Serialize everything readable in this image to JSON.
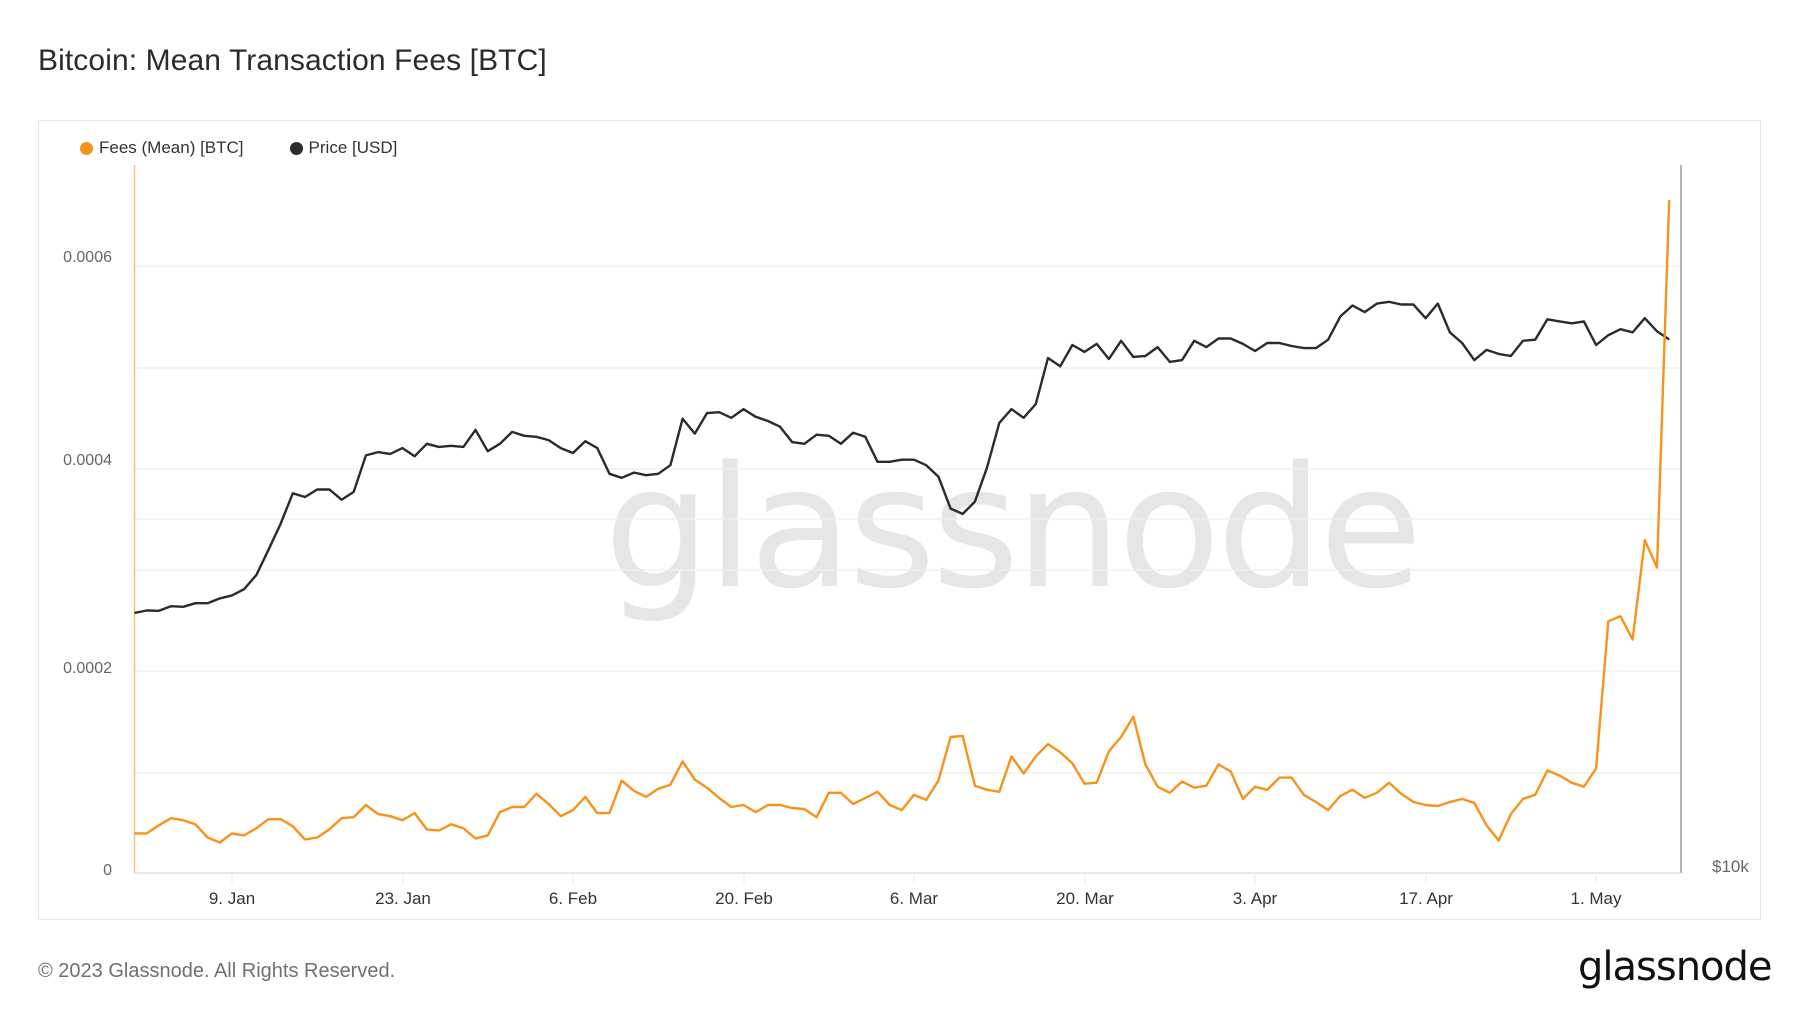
{
  "page": {
    "title": "Bitcoin: Mean Transaction Fees [BTC]",
    "copyright": "© 2023 Glassnode. All Rights Reserved.",
    "logo": "glassnode",
    "watermark": "glassnode"
  },
  "legend": [
    {
      "label": "Fees (Mean) [BTC]",
      "color": "#f7931a",
      "icon": "circle-dot"
    },
    {
      "label": "Price [USD]",
      "color": "#2b2b2b",
      "icon": "circle-dot"
    }
  ],
  "axes": {
    "y_left_ticks": [
      "0",
      "0.0002",
      "0.0004",
      "0.0006"
    ],
    "y_right_label": "$10k",
    "x_ticks": [
      "9. Jan",
      "23. Jan",
      "6. Feb",
      "20. Feb",
      "6. Mar",
      "20. Mar",
      "3. Apr",
      "17. Apr",
      "1. May"
    ]
  },
  "colors": {
    "fees": "#f7931a",
    "price": "#2b2b2b",
    "grid": "#efefef",
    "watermark": "#e6e6e6"
  },
  "chart_data": {
    "type": "line",
    "title": "Bitcoin: Mean Transaction Fees [BTC]",
    "xlabel": "",
    "ylabel": "Fees (Mean) [BTC]",
    "y2label": "Price [USD]",
    "x_start": "2023-01-01",
    "x_end": "2023-05-07",
    "x_interval": "1 day",
    "x_tick_labels": [
      "9. Jan",
      "23. Jan",
      "6. Feb",
      "20. Feb",
      "6. Mar",
      "20. Mar",
      "3. Apr",
      "17. Apr",
      "1. May"
    ],
    "ylim": [
      0,
      0.0007
    ],
    "y_tick_labels": [
      "0",
      "0.0002",
      "0.0004",
      "0.0006"
    ],
    "y2_scale": "log",
    "y2_tick_labels": [
      "$10k"
    ],
    "grid": true,
    "legend_position": "top-left",
    "series": [
      {
        "name": "Fees (Mean) [BTC]",
        "axis": "left",
        "color": "#f7931a",
        "values": [
          3.9e-05,
          3.9e-05,
          4.7e-05,
          5.4e-05,
          5.2e-05,
          4.8e-05,
          3.5e-05,
          3e-05,
          3.9e-05,
          3.7e-05,
          4.4e-05,
          5.3e-05,
          5.3e-05,
          4.6e-05,
          3.3e-05,
          3.5e-05,
          4.3e-05,
          5.4e-05,
          5.5e-05,
          6.7e-05,
          5.8e-05,
          5.6e-05,
          5.2e-05,
          5.9e-05,
          4.3e-05,
          4.2e-05,
          4.8e-05,
          4.4e-05,
          3.4e-05,
          3.7e-05,
          6e-05,
          6.5e-05,
          6.5e-05,
          7.8e-05,
          6.8e-05,
          5.6e-05,
          6.2e-05,
          7.5e-05,
          5.9e-05,
          5.9e-05,
          9.1e-05,
          8.1e-05,
          7.5e-05,
          8.3e-05,
          8.7e-05,
          0.00011,
          9.2e-05,
          8.4e-05,
          7.4e-05,
          6.5e-05,
          6.7e-05,
          6e-05,
          6.7e-05,
          6.7e-05,
          6.4e-05,
          6.3e-05,
          5.5e-05,
          7.9e-05,
          7.9e-05,
          6.8e-05,
          7.4e-05,
          8e-05,
          6.7e-05,
          6.2e-05,
          7.7e-05,
          7.2e-05,
          9.1e-05,
          0.000134,
          0.000135,
          8.6e-05,
          8.2e-05,
          8e-05,
          0.000115,
          9.8e-05,
          0.000115,
          0.000127,
          0.000119,
          0.000108,
          8.8e-05,
          8.9e-05,
          0.00012,
          0.000134,
          0.000154,
          0.000107,
          8.5e-05,
          7.9e-05,
          9e-05,
          8.4e-05,
          8.6e-05,
          0.000107,
          0.0001,
          7.3e-05,
          8.5e-05,
          8.2e-05,
          9.4e-05,
          9.4e-05,
          7.7e-05,
          7e-05,
          6.2e-05,
          7.6e-05,
          8.2e-05,
          7.4e-05,
          7.9e-05,
          8.9e-05,
          7.8e-05,
          7e-05,
          6.7e-05,
          6.6e-05,
          7e-05,
          7.3e-05,
          6.9e-05,
          4.7e-05,
          3.2e-05,
          5.8e-05,
          7.3e-05,
          7.7e-05,
          0.000101,
          9.6e-05,
          8.9e-05,
          8.5e-05,
          0.000103,
          0.000248,
          0.000253,
          0.00023,
          0.000328,
          0.000301,
          0.000663
        ]
      },
      {
        "name": "Price [USD]",
        "axis": "right",
        "color": "#2b2b2b",
        "values": [
          16640,
          16720,
          16710,
          16860,
          16840,
          16960,
          16960,
          17120,
          17220,
          17430,
          17920,
          18830,
          19820,
          21030,
          20880,
          21190,
          21190,
          20770,
          21090,
          22650,
          22800,
          22720,
          22980,
          22610,
          23170,
          23030,
          23080,
          23030,
          23810,
          22840,
          23170,
          23720,
          23540,
          23490,
          23340,
          22980,
          22760,
          23290,
          22980,
          21850,
          21680,
          21900,
          21790,
          21850,
          22220,
          24340,
          23640,
          24610,
          24650,
          24380,
          24800,
          24430,
          24230,
          23960,
          23250,
          23170,
          23590,
          23540,
          23170,
          23680,
          23490,
          22370,
          22370,
          22460,
          22460,
          22220,
          21730,
          20410,
          20200,
          20690,
          22130,
          24140,
          24800,
          24380,
          25050,
          27410,
          26970,
          28120,
          27740,
          28180,
          27360,
          28350,
          27470,
          27520,
          28000,
          27200,
          27300,
          28350,
          28000,
          28480,
          28480,
          28180,
          27790,
          28230,
          28230,
          28060,
          27950,
          27950,
          28410,
          29730,
          30380,
          29990,
          30490,
          30600,
          30440,
          30440,
          29630,
          30490,
          28820,
          28230,
          27300,
          27850,
          27630,
          27520,
          28350,
          28410,
          29570,
          29450,
          29340,
          29450,
          28120,
          28660,
          29000,
          28820,
          29630,
          28880,
          28420
        ]
      }
    ]
  }
}
